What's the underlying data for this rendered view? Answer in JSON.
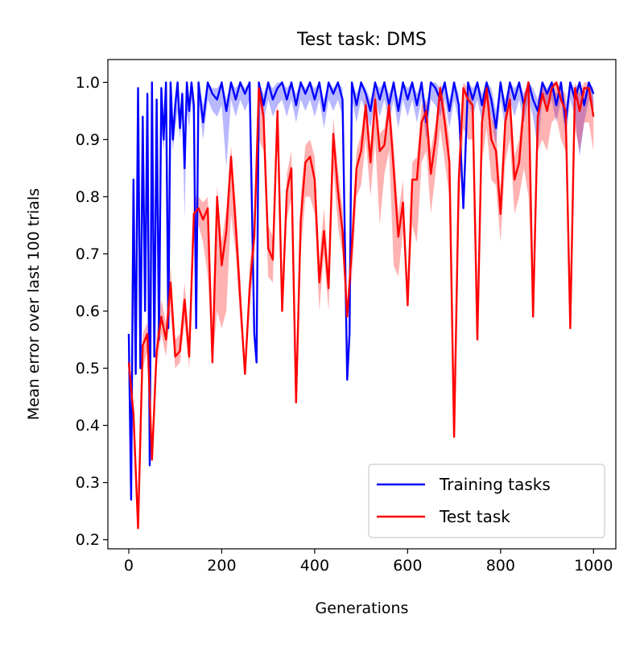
{
  "chart_data": {
    "type": "line",
    "title": "Test task: DMS",
    "xlabel": "Generations",
    "ylabel": "Mean error over last 100 trials",
    "xlim": [
      -45,
      1048
    ],
    "ylim": [
      0.184,
      1.04
    ],
    "xticks": [
      0,
      200,
      400,
      600,
      800,
      1000
    ],
    "yticks": [
      0.2,
      0.3,
      0.4,
      0.5,
      0.6,
      0.7,
      0.8,
      0.9,
      1.0
    ],
    "xtick_labels": [
      "0",
      "200",
      "400",
      "600",
      "800",
      "1000"
    ],
    "ytick_labels": [
      "0.2",
      "0.3",
      "0.4",
      "0.5",
      "0.6",
      "0.7",
      "0.8",
      "0.9",
      "1.0"
    ],
    "grid": false,
    "legend_position": "lower-right",
    "series": [
      {
        "name": "Training tasks",
        "color": "#0000ff",
        "band_color": "#0000ff",
        "x": [
          0,
          5,
          10,
          15,
          20,
          25,
          30,
          35,
          40,
          45,
          50,
          55,
          60,
          65,
          70,
          75,
          80,
          85,
          90,
          95,
          100,
          105,
          110,
          115,
          120,
          125,
          130,
          135,
          140,
          145,
          150,
          160,
          170,
          180,
          190,
          200,
          210,
          220,
          230,
          240,
          250,
          260,
          270,
          275,
          280,
          290,
          300,
          310,
          320,
          330,
          340,
          350,
          360,
          370,
          380,
          390,
          400,
          410,
          420,
          430,
          440,
          450,
          460,
          470,
          475,
          480,
          490,
          500,
          510,
          520,
          530,
          540,
          550,
          560,
          570,
          580,
          590,
          600,
          610,
          620,
          630,
          640,
          650,
          660,
          670,
          680,
          690,
          700,
          710,
          720,
          730,
          740,
          750,
          760,
          770,
          780,
          790,
          800,
          810,
          820,
          830,
          840,
          850,
          860,
          870,
          880,
          890,
          900,
          910,
          920,
          930,
          940,
          950,
          960,
          970,
          980,
          990,
          1000
        ],
        "values": [
          0.56,
          0.27,
          0.83,
          0.49,
          0.99,
          0.5,
          0.94,
          0.6,
          0.98,
          0.33,
          1.0,
          0.52,
          0.97,
          0.55,
          0.99,
          0.9,
          1.0,
          0.57,
          1.0,
          0.9,
          0.96,
          1.0,
          0.92,
          0.98,
          0.85,
          1.0,
          0.95,
          1.0,
          0.96,
          0.57,
          1.0,
          0.93,
          1.0,
          0.98,
          0.97,
          1.0,
          0.95,
          1.0,
          0.97,
          1.0,
          0.98,
          1.0,
          0.56,
          0.51,
          1.0,
          0.96,
          1.0,
          0.97,
          0.99,
          1.0,
          0.97,
          1.0,
          0.96,
          1.0,
          0.98,
          1.0,
          0.97,
          1.0,
          0.95,
          1.0,
          0.98,
          1.0,
          0.97,
          0.48,
          0.56,
          1.0,
          0.96,
          1.0,
          0.98,
          0.95,
          1.0,
          0.97,
          1.0,
          0.96,
          1.0,
          0.95,
          1.0,
          0.97,
          1.0,
          0.96,
          1.0,
          0.93,
          1.0,
          0.99,
          0.97,
          1.0,
          0.95,
          1.0,
          0.96,
          0.78,
          1.0,
          0.97,
          1.0,
          0.96,
          1.0,
          0.97,
          0.92,
          1.0,
          0.95,
          1.0,
          0.97,
          1.0,
          0.96,
          1.0,
          0.97,
          0.95,
          1.0,
          0.98,
          1.0,
          0.96,
          1.0,
          0.93,
          1.0,
          0.97,
          1.0,
          0.96,
          1.0,
          0.98
        ],
        "band_lower": [
          0.56,
          0.27,
          0.8,
          0.49,
          0.9,
          0.5,
          0.85,
          0.6,
          0.88,
          0.33,
          0.92,
          0.52,
          0.9,
          0.55,
          0.92,
          0.88,
          0.95,
          0.57,
          0.93,
          0.88,
          0.92,
          0.95,
          0.9,
          0.94,
          0.76,
          0.95,
          0.92,
          0.97,
          0.93,
          0.57,
          0.97,
          0.9,
          0.97,
          0.95,
          0.94,
          0.96,
          0.85,
          0.97,
          0.94,
          0.97,
          0.95,
          0.97,
          0.56,
          0.51,
          0.97,
          0.93,
          0.97,
          0.94,
          0.96,
          0.97,
          0.94,
          0.97,
          0.93,
          0.97,
          0.95,
          0.97,
          0.94,
          0.97,
          0.92,
          0.97,
          0.95,
          0.97,
          0.94,
          0.48,
          0.56,
          0.97,
          0.93,
          0.97,
          0.95,
          0.92,
          0.97,
          0.94,
          0.97,
          0.93,
          0.97,
          0.92,
          0.97,
          0.94,
          0.97,
          0.93,
          0.97,
          0.9,
          0.97,
          0.96,
          0.94,
          0.97,
          0.92,
          0.97,
          0.93,
          0.78,
          0.97,
          0.94,
          0.97,
          0.93,
          0.97,
          0.94,
          0.89,
          0.97,
          0.92,
          0.97,
          0.94,
          0.97,
          0.93,
          0.97,
          0.94,
          0.88,
          0.97,
          0.95,
          0.97,
          0.93,
          0.97,
          0.9,
          0.97,
          0.94,
          0.87,
          0.93,
          0.97,
          0.95
        ],
        "band_upper": [
          0.56,
          0.27,
          0.85,
          0.49,
          0.99,
          0.5,
          0.96,
          0.6,
          0.99,
          0.33,
          1.0,
          0.52,
          0.99,
          0.55,
          1.0,
          0.93,
          1.0,
          0.57,
          1.0,
          0.93,
          0.98,
          1.0,
          0.95,
          0.99,
          0.88,
          1.0,
          0.97,
          1.0,
          0.98,
          0.57,
          1.0,
          0.96,
          1.0,
          0.99,
          0.99,
          1.0,
          0.97,
          1.0,
          0.99,
          1.0,
          0.99,
          1.0,
          0.56,
          0.51,
          1.0,
          0.98,
          1.0,
          0.99,
          1.0,
          1.0,
          0.99,
          1.0,
          0.98,
          1.0,
          0.99,
          1.0,
          0.99,
          1.0,
          0.97,
          1.0,
          0.99,
          1.0,
          0.99,
          0.48,
          0.56,
          1.0,
          0.98,
          1.0,
          0.99,
          0.97,
          1.0,
          0.99,
          1.0,
          0.98,
          1.0,
          0.97,
          1.0,
          0.99,
          1.0,
          0.98,
          1.0,
          0.96,
          1.0,
          1.0,
          0.99,
          1.0,
          0.97,
          1.0,
          0.98,
          0.78,
          1.0,
          0.99,
          1.0,
          0.98,
          1.0,
          0.99,
          0.95,
          1.0,
          0.97,
          1.0,
          0.99,
          1.0,
          0.98,
          1.0,
          0.99,
          0.97,
          1.0,
          0.99,
          1.0,
          0.98,
          1.0,
          0.96,
          1.0,
          0.99,
          1.0,
          0.98,
          1.0,
          0.99
        ]
      },
      {
        "name": "Test task",
        "color": "#ff0000",
        "band_color": "#ff0000",
        "x": [
          0,
          10,
          20,
          30,
          40,
          50,
          60,
          70,
          80,
          90,
          100,
          110,
          120,
          130,
          140,
          150,
          160,
          170,
          180,
          190,
          200,
          210,
          220,
          230,
          240,
          250,
          260,
          270,
          280,
          290,
          300,
          310,
          320,
          330,
          340,
          350,
          360,
          370,
          380,
          390,
          400,
          410,
          420,
          430,
          440,
          450,
          460,
          470,
          480,
          490,
          500,
          510,
          520,
          530,
          540,
          550,
          560,
          570,
          580,
          590,
          600,
          610,
          620,
          630,
          640,
          650,
          660,
          670,
          680,
          690,
          700,
          710,
          720,
          730,
          740,
          750,
          760,
          770,
          780,
          790,
          800,
          810,
          820,
          830,
          840,
          850,
          860,
          870,
          880,
          890,
          900,
          910,
          920,
          930,
          940,
          950,
          960,
          970,
          980,
          990,
          1000
        ],
        "values": [
          0.51,
          0.42,
          0.22,
          0.54,
          0.56,
          0.34,
          0.53,
          0.59,
          0.55,
          0.65,
          0.52,
          0.53,
          0.62,
          0.52,
          0.77,
          0.78,
          0.76,
          0.78,
          0.51,
          0.8,
          0.68,
          0.74,
          0.87,
          0.75,
          0.62,
          0.49,
          0.64,
          0.73,
          0.99,
          0.94,
          0.71,
          0.69,
          0.95,
          0.6,
          0.81,
          0.85,
          0.44,
          0.76,
          0.86,
          0.87,
          0.83,
          0.65,
          0.74,
          0.64,
          0.91,
          0.81,
          0.74,
          0.59,
          0.71,
          0.85,
          0.88,
          0.96,
          0.86,
          0.97,
          0.88,
          0.89,
          0.96,
          0.85,
          0.73,
          0.79,
          0.61,
          0.83,
          0.83,
          0.93,
          0.95,
          0.84,
          0.9,
          0.99,
          0.93,
          0.86,
          0.38,
          0.83,
          0.99,
          0.97,
          0.96,
          0.55,
          0.93,
          0.99,
          0.9,
          0.88,
          0.77,
          0.93,
          0.97,
          0.83,
          0.86,
          0.96,
          1.0,
          0.59,
          0.94,
          0.98,
          0.95,
          0.99,
          1.0,
          0.97,
          0.95,
          0.57,
          0.99,
          0.95,
          0.99,
          0.99,
          0.94
        ],
        "band_lower": [
          0.51,
          0.4,
          0.22,
          0.5,
          0.53,
          0.34,
          0.5,
          0.56,
          0.52,
          0.6,
          0.5,
          0.51,
          0.58,
          0.5,
          0.72,
          0.75,
          0.72,
          0.66,
          0.51,
          0.6,
          0.57,
          0.6,
          0.77,
          0.7,
          0.58,
          0.49,
          0.6,
          0.7,
          0.9,
          0.88,
          0.66,
          0.65,
          0.9,
          0.6,
          0.76,
          0.8,
          0.44,
          0.7,
          0.8,
          0.8,
          0.77,
          0.6,
          0.7,
          0.6,
          0.85,
          0.75,
          0.7,
          0.59,
          0.66,
          0.8,
          0.82,
          0.9,
          0.8,
          0.9,
          0.75,
          0.84,
          0.88,
          0.68,
          0.66,
          0.74,
          0.61,
          0.75,
          0.72,
          0.86,
          0.88,
          0.77,
          0.84,
          0.92,
          0.86,
          0.8,
          0.38,
          0.76,
          0.92,
          0.9,
          0.9,
          0.55,
          0.86,
          0.92,
          0.83,
          0.82,
          0.72,
          0.86,
          0.9,
          0.77,
          0.8,
          0.85,
          0.8,
          0.59,
          0.88,
          0.9,
          0.88,
          0.93,
          0.94,
          0.9,
          0.88,
          0.57,
          0.92,
          0.88,
          0.93,
          0.93,
          0.88
        ],
        "band_upper": [
          0.51,
          0.44,
          0.22,
          0.56,
          0.58,
          0.34,
          0.56,
          0.62,
          0.58,
          0.68,
          0.55,
          0.56,
          0.65,
          0.55,
          0.8,
          0.8,
          0.79,
          0.8,
          0.51,
          0.82,
          0.72,
          0.78,
          0.89,
          0.79,
          0.66,
          0.49,
          0.68,
          0.76,
          1.0,
          0.96,
          0.75,
          0.73,
          0.97,
          0.6,
          0.84,
          0.88,
          0.44,
          0.8,
          0.89,
          0.9,
          0.87,
          0.69,
          0.78,
          0.68,
          0.94,
          0.85,
          0.78,
          0.59,
          0.75,
          0.88,
          0.91,
          0.98,
          0.89,
          0.99,
          0.91,
          0.92,
          0.98,
          0.89,
          0.77,
          0.83,
          0.61,
          0.86,
          0.87,
          0.96,
          0.97,
          0.88,
          0.93,
          1.0,
          0.96,
          0.9,
          0.38,
          0.87,
          1.0,
          0.99,
          0.98,
          0.55,
          0.96,
          1.0,
          0.94,
          0.92,
          0.81,
          0.96,
          0.99,
          0.87,
          0.9,
          0.98,
          1.0,
          0.59,
          0.97,
          1.0,
          0.98,
          1.0,
          1.0,
          0.99,
          0.98,
          0.57,
          1.0,
          0.98,
          1.0,
          1.0,
          0.97
        ]
      }
    ]
  }
}
